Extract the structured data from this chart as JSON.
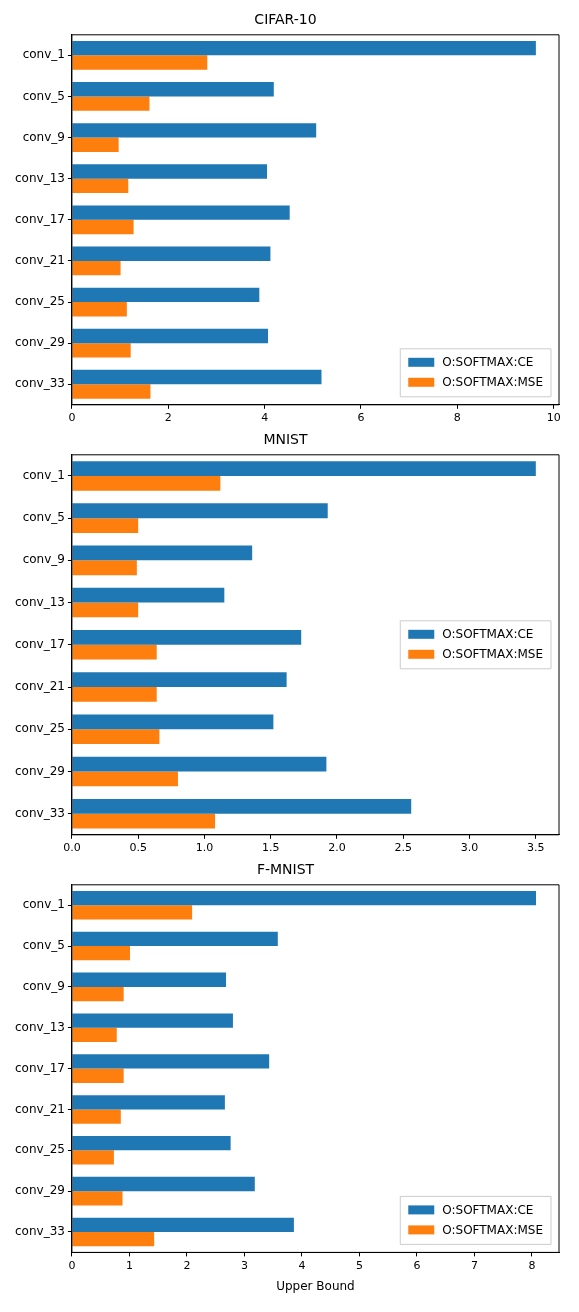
{
  "chart_data": [
    {
      "type": "bar",
      "orientation": "horizontal",
      "title": "CIFAR-10",
      "categories": [
        "conv_1",
        "conv_5",
        "conv_9",
        "conv_13",
        "conv_17",
        "conv_21",
        "conv_25",
        "conv_29",
        "conv_33"
      ],
      "series": [
        {
          "name": "O:SOFTMAX:CE",
          "color": "#1f77b4",
          "values": [
            9.63,
            4.19,
            5.07,
            4.05,
            4.52,
            4.12,
            3.89,
            4.07,
            5.18
          ]
        },
        {
          "name": "O:SOFTMAX:MSE",
          "color": "#ff7f0e",
          "values": [
            2.81,
            1.61,
            0.97,
            1.17,
            1.28,
            1.01,
            1.14,
            1.22,
            1.63
          ]
        }
      ],
      "xlim": [
        0,
        10.11
      ],
      "xticks": [
        0,
        2,
        4,
        6,
        8,
        10
      ],
      "grid": false,
      "legend": "bottom right"
    },
    {
      "type": "bar",
      "orientation": "horizontal",
      "title": "MNIST",
      "categories": [
        "conv_1",
        "conv_5",
        "conv_9",
        "conv_13",
        "conv_17",
        "conv_21",
        "conv_25",
        "conv_29",
        "conv_33"
      ],
      "series": [
        {
          "name": "O:SOFTMAX:CE",
          "color": "#1f77b4",
          "values": [
            3.5,
            1.93,
            1.36,
            1.15,
            1.73,
            1.62,
            1.52,
            1.92,
            2.56
          ]
        },
        {
          "name": "O:SOFTMAX:MSE",
          "color": "#ff7f0e",
          "values": [
            1.12,
            0.5,
            0.49,
            0.5,
            0.64,
            0.64,
            0.66,
            0.8,
            1.08
          ]
        }
      ],
      "xlim": [
        0,
        3.675
      ],
      "xticks": [
        {
          "value": 0,
          "label": "0.0"
        },
        {
          "value": 0.5,
          "label": "0.5"
        },
        {
          "value": 1,
          "label": "1.0"
        },
        {
          "value": 1.5,
          "label": "1.5"
        },
        {
          "value": 2,
          "label": "2.0"
        },
        {
          "value": 2.5,
          "label": "2.5"
        },
        {
          "value": 3,
          "label": "3.0"
        },
        {
          "value": 3.5,
          "label": "3.5"
        }
      ],
      "grid": false,
      "legend": "right"
    },
    {
      "type": "bar",
      "orientation": "horizontal",
      "title": "F-MNIST",
      "xlabel": "Upper Bound",
      "categories": [
        "conv_1",
        "conv_5",
        "conv_9",
        "conv_13",
        "conv_17",
        "conv_21",
        "conv_25",
        "conv_29",
        "conv_33"
      ],
      "series": [
        {
          "name": "O:SOFTMAX:CE",
          "color": "#1f77b4",
          "values": [
            8.07,
            3.58,
            2.68,
            2.8,
            3.43,
            2.66,
            2.76,
            3.18,
            3.86
          ]
        },
        {
          "name": "O:SOFTMAX:MSE",
          "color": "#ff7f0e",
          "values": [
            2.09,
            1.01,
            0.9,
            0.78,
            0.9,
            0.85,
            0.73,
            0.88,
            1.43
          ]
        }
      ],
      "xlim": [
        0,
        8.47
      ],
      "xticks": [
        0,
        1,
        2,
        3,
        4,
        5,
        6,
        7,
        8
      ],
      "grid": false,
      "legend": "bottom right"
    }
  ]
}
